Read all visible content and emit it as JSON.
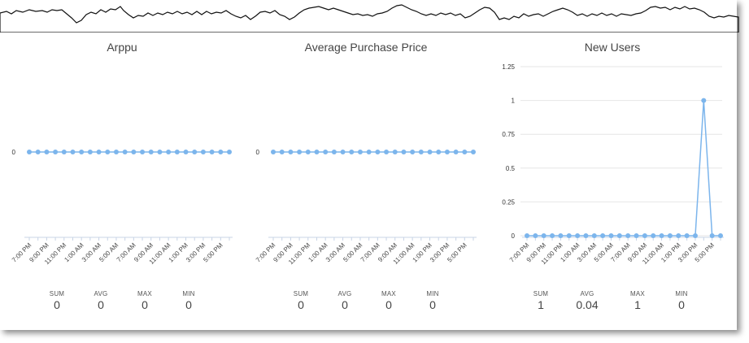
{
  "chart_data": [
    {
      "type": "line",
      "title": "Arppu",
      "categories": [
        "7:00 PM",
        "",
        "9:00 PM",
        "",
        "11:00 PM",
        "",
        "1:00 AM",
        "",
        "3:00 AM",
        "",
        "5:00 AM",
        "",
        "7:00 AM",
        "",
        "9:00 AM",
        "",
        "11:00 AM",
        "",
        "1:00 PM",
        "",
        "3:00 PM",
        "",
        "5:00 PM",
        ""
      ],
      "values": [
        0,
        0,
        0,
        0,
        0,
        0,
        0,
        0,
        0,
        0,
        0,
        0,
        0,
        0,
        0,
        0,
        0,
        0,
        0,
        0,
        0,
        0,
        0,
        0
      ],
      "y_ticks": [
        "0"
      ],
      "ylim": [
        -1,
        1
      ],
      "grid": false,
      "color": "#7cb5ec",
      "stats": [
        {
          "label": "SUM",
          "value": "0"
        },
        {
          "label": "AVG",
          "value": "0"
        },
        {
          "label": "MAX",
          "value": "0"
        },
        {
          "label": "MIN",
          "value": "0"
        }
      ]
    },
    {
      "type": "line",
      "title": "Average Purchase Price",
      "categories": [
        "7:00 PM",
        "",
        "9:00 PM",
        "",
        "11:00 PM",
        "",
        "1:00 AM",
        "",
        "3:00 AM",
        "",
        "5:00 AM",
        "",
        "7:00 AM",
        "",
        "9:00 AM",
        "",
        "11:00 AM",
        "",
        "1:00 PM",
        "",
        "3:00 PM",
        "",
        "5:00 PM",
        ""
      ],
      "values": [
        0,
        0,
        0,
        0,
        0,
        0,
        0,
        0,
        0,
        0,
        0,
        0,
        0,
        0,
        0,
        0,
        0,
        0,
        0,
        0,
        0,
        0,
        0,
        0
      ],
      "y_ticks": [
        "0"
      ],
      "ylim": [
        -1,
        1
      ],
      "grid": false,
      "color": "#7cb5ec",
      "stats": [
        {
          "label": "SUM",
          "value": "0"
        },
        {
          "label": "AVG",
          "value": "0"
        },
        {
          "label": "MAX",
          "value": "0"
        },
        {
          "label": "MIN",
          "value": "0"
        }
      ]
    },
    {
      "type": "line",
      "title": "New Users",
      "categories": [
        "7:00 PM",
        "",
        "9:00 PM",
        "",
        "11:00 PM",
        "",
        "1:00 AM",
        "",
        "3:00 AM",
        "",
        "5:00 AM",
        "",
        "7:00 AM",
        "",
        "9:00 AM",
        "",
        "11:00 AM",
        "",
        "1:00 PM",
        "",
        "3:00 PM",
        "",
        "5:00 PM",
        ""
      ],
      "values": [
        0,
        0,
        0,
        0,
        0,
        0,
        0,
        0,
        0,
        0,
        0,
        0,
        0,
        0,
        0,
        0,
        0,
        0,
        0,
        0,
        0,
        1,
        0,
        0
      ],
      "y_ticks": [
        "0",
        "0.25",
        "0.5",
        "0.75",
        "1",
        "1.25"
      ],
      "ylim": [
        0,
        1.25
      ],
      "grid": true,
      "color": "#7cb5ec",
      "stats": [
        {
          "label": "SUM",
          "value": "1"
        },
        {
          "label": "AVG",
          "value": "0.04"
        },
        {
          "label": "MAX",
          "value": "1"
        },
        {
          "label": "MIN",
          "value": "0"
        }
      ]
    }
  ]
}
